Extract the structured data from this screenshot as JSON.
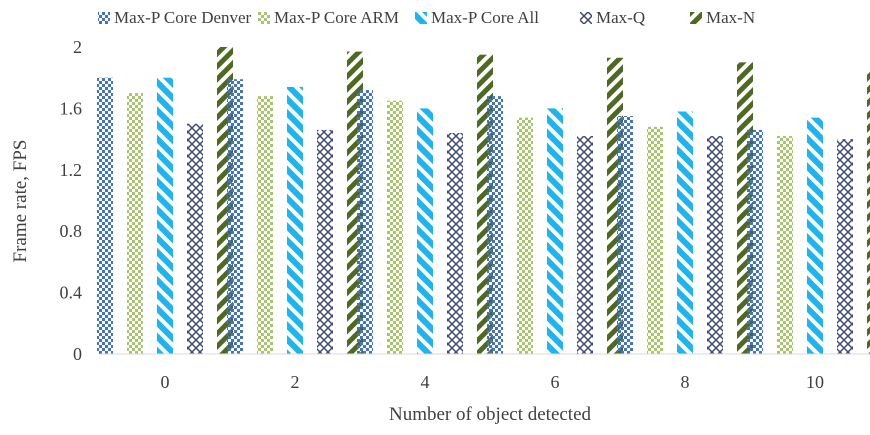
{
  "chart_data": {
    "type": "bar",
    "xlabel": "Number of object detected",
    "ylabel": "Frame rate, FPS",
    "categories": [
      "0",
      "2",
      "4",
      "6",
      "8",
      "10"
    ],
    "ylim": [
      0,
      2
    ],
    "yticks": [
      "0",
      "0.4",
      "0.8",
      "1.2",
      "1.6",
      "2"
    ],
    "grid": false,
    "legend_position": "top",
    "series": [
      {
        "name": "Max-P Core Denver",
        "values": [
          1.8,
          1.79,
          1.72,
          1.68,
          1.55,
          1.46
        ],
        "color": "#4472C4",
        "pattern": "checker-small"
      },
      {
        "name": "Max-P Core ARM",
        "values": [
          1.7,
          1.68,
          1.65,
          1.54,
          1.48,
          1.42
        ],
        "color": "#A9C46E",
        "pattern": "checker"
      },
      {
        "name": "Max-P Core All",
        "values": [
          1.8,
          1.74,
          1.6,
          1.6,
          1.58,
          1.54
        ],
        "color": "#1EB4F0",
        "pattern": "diagonal-wide"
      },
      {
        "name": "Max-Q",
        "values": [
          1.5,
          1.46,
          1.44,
          1.42,
          1.42,
          1.4
        ],
        "color": "#404A7A",
        "pattern": "diamond"
      },
      {
        "name": "Max-N",
        "values": [
          2.0,
          1.97,
          1.95,
          1.93,
          1.9,
          1.85
        ],
        "color": "#4E6A22",
        "pattern": "diagonal"
      }
    ]
  }
}
